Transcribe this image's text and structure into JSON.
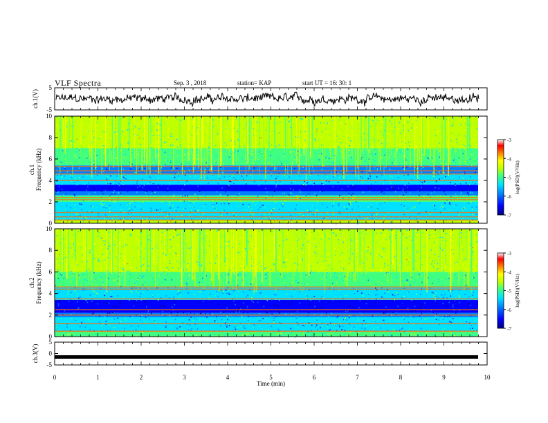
{
  "header": {
    "title": "VLF Spectra",
    "date": "Sep. 3  , 2018",
    "station": "station= KAP",
    "start": "start  UT  =   16: 30: 1"
  },
  "colorbar": {
    "label": "log(PSD)(V²/Hz)",
    "ticks": [
      "-3",
      "-4",
      "-5",
      "-6",
      "-7"
    ],
    "colors": [
      "#000080",
      "#0000ff",
      "#0080ff",
      "#00e0ff",
      "#40ff80",
      "#c0ff00",
      "#ffff00",
      "#ff8000",
      "#ff0000",
      "#ffffff"
    ]
  },
  "chart_data": [
    {
      "type": "line",
      "panel": "ch.1 waveform",
      "ylabel": "ch.1(V)",
      "ylim": [
        -5,
        5
      ],
      "yticks": [
        "5",
        "-5"
      ],
      "xlim": [
        0,
        10
      ],
      "description_values": {
        "mean": 0,
        "amplitude_range": [
          -4,
          4
        ]
      }
    },
    {
      "type": "heatmap",
      "panel": "ch.1 spectrogram",
      "ylabel": "ch.1\nFrequency  (kHz)",
      "ylim": [
        0,
        10
      ],
      "yticks": [
        "0",
        "2",
        "4",
        "6",
        "8",
        "10"
      ],
      "xlim": [
        0,
        9.8
      ],
      "zlim": [
        -7,
        -3
      ],
      "bands": [
        {
          "f": [
            0.0,
            0.3
          ],
          "level": -4.3
        },
        {
          "f": [
            0.3,
            1.0
          ],
          "level": -5.0
        },
        {
          "f": [
            1.0,
            2.0
          ],
          "level": -5.2
        },
        {
          "f": [
            2.0,
            2.6
          ],
          "level": -4.8
        },
        {
          "f": [
            2.6,
            3.0
          ],
          "level": -5.6
        },
        {
          "f": [
            3.0,
            3.6
          ],
          "level": -6.2
        },
        {
          "f": [
            3.6,
            4.6
          ],
          "level": -5.3
        },
        {
          "f": [
            4.6,
            5.4
          ],
          "level": -5.4
        },
        {
          "f": [
            5.4,
            7.0
          ],
          "level": -4.8
        },
        {
          "f": [
            7.0,
            10.0
          ],
          "level": -4.5
        }
      ],
      "lines_khz": [
        0.3,
        0.6,
        1.0,
        2.2,
        2.4,
        4.0,
        4.6,
        4.9,
        5.3
      ],
      "burst_density": 0.35
    },
    {
      "type": "heatmap",
      "panel": "ch.2 spectrogram",
      "ylabel": "ch.2\nFrequency  (kHz)",
      "ylim": [
        0,
        10
      ],
      "yticks": [
        "0",
        "2",
        "4",
        "6",
        "8",
        "10"
      ],
      "xlim": [
        0,
        9.8
      ],
      "zlim": [
        -7,
        -3
      ],
      "bands": [
        {
          "f": [
            0.0,
            0.5
          ],
          "level": -4.6
        },
        {
          "f": [
            0.5,
            1.8
          ],
          "level": -5.3
        },
        {
          "f": [
            1.8,
            2.2
          ],
          "level": -5.6
        },
        {
          "f": [
            2.2,
            3.4
          ],
          "level": -6.3
        },
        {
          "f": [
            3.4,
            4.6
          ],
          "level": -5.2
        },
        {
          "f": [
            4.6,
            6.0
          ],
          "level": -4.9
        },
        {
          "f": [
            6.0,
            10.0
          ],
          "level": -4.5
        }
      ],
      "lines_khz": [
        0.5,
        1.2,
        2.0,
        2.5,
        3.5,
        4.4,
        4.6
      ],
      "burst_density": 0.33
    },
    {
      "type": "line",
      "panel": "ch.3 waveform",
      "ylabel": "ch.3(V)",
      "ylim": [
        -5,
        5
      ],
      "yticks": [
        "5",
        "0",
        "-5"
      ],
      "xlim": [
        0,
        10
      ],
      "values_constant": -1.5
    }
  ],
  "xaxis": {
    "label": "Time  (min)",
    "ticks": [
      "0",
      "1",
      "2",
      "3",
      "4",
      "5",
      "6",
      "7",
      "8",
      "9",
      "10"
    ]
  }
}
